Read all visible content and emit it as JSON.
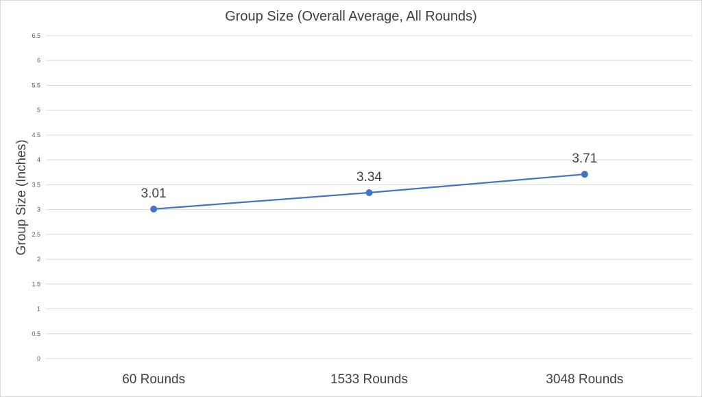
{
  "chart_data": {
    "type": "line",
    "title": "Group Size (Overall Average, All Rounds)",
    "xlabel": "",
    "ylabel": "Group Size (Inches)",
    "categories": [
      "60 Rounds",
      "1533 Rounds",
      "3048 Rounds"
    ],
    "series": [
      {
        "values": [
          3.01,
          3.34,
          3.71
        ],
        "data_labels": [
          "3.01",
          "3.34",
          "3.71"
        ],
        "color": "#4472c4"
      }
    ],
    "ylim": [
      0,
      6.5
    ],
    "yticks": [
      0,
      0.5,
      1,
      1.5,
      2,
      2.5,
      3,
      3.5,
      4,
      4.5,
      5,
      5.5,
      6,
      6.5
    ],
    "ytick_labels": [
      "0",
      "0.5",
      "1",
      "1.5",
      "2",
      "2.5",
      "3",
      "3.5",
      "4",
      "4.5",
      "5",
      "5.5",
      "6",
      "6.5"
    ],
    "grid": true,
    "legend": "none",
    "colors": {
      "gridline": "#d9d9d9",
      "text": "#404040"
    }
  }
}
